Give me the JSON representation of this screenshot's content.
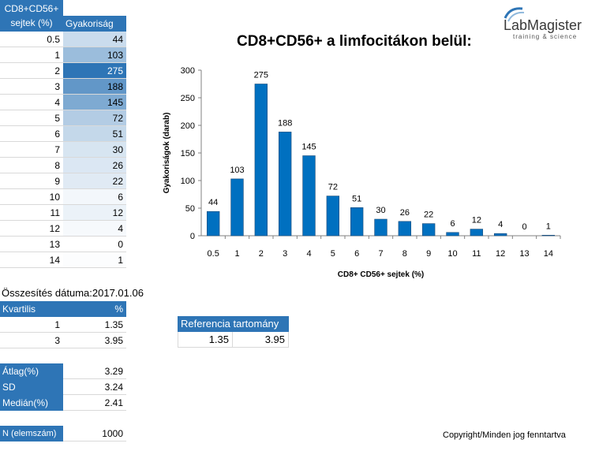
{
  "freq_table": {
    "header_bin": "CD8+CD56+ sejtek (%)",
    "header_count": "Gyakoriság",
    "rows": [
      {
        "bin": "0.5",
        "count": "44"
      },
      {
        "bin": "1",
        "count": "103"
      },
      {
        "bin": "2",
        "count": "275"
      },
      {
        "bin": "3",
        "count": "188"
      },
      {
        "bin": "4",
        "count": "145"
      },
      {
        "bin": "5",
        "count": "72"
      },
      {
        "bin": "6",
        "count": "51"
      },
      {
        "bin": "7",
        "count": "30"
      },
      {
        "bin": "8",
        "count": "26"
      },
      {
        "bin": "9",
        "count": "22"
      },
      {
        "bin": "10",
        "count": "6"
      },
      {
        "bin": "11",
        "count": "12"
      },
      {
        "bin": "12",
        "count": "4"
      },
      {
        "bin": "13",
        "count": "0"
      },
      {
        "bin": "14",
        "count": "1"
      }
    ]
  },
  "summary": {
    "date_text": "Összesítés dátuma:2017.01.06",
    "quartile_header": "Kvartilis",
    "percent_header": "%",
    "quartiles": [
      {
        "q": "1",
        "value": "1.35"
      },
      {
        "q": "3",
        "value": "3.95"
      }
    ],
    "mean_label": "Átlag(%)",
    "mean_value": "3.29",
    "sd_label": "SD",
    "sd_value": "3.24",
    "median_label": "Medián(%)",
    "median_value": "2.41",
    "n_label": "N (elemszám)",
    "n_value": "1000"
  },
  "reference": {
    "label": "Referencia tartomány",
    "low": "1.35",
    "high": "3.95"
  },
  "logo": {
    "name": "LabMagister",
    "tagline": "training & science"
  },
  "copyright": "Copyright/Minden jog fenntartva",
  "colors": {
    "bar": "#0070c0",
    "header": "#2e75b6",
    "scale_dark": "#2e75b6",
    "scale_light": "#ffffff"
  },
  "chart_data": {
    "type": "bar",
    "title": "CD8+CD56+ a limfocitákon belül:",
    "xlabel": "CD8+ CD56+ sejtek (%)",
    "ylabel": "Gyakoriságok (darab)",
    "categories": [
      "0.5",
      "1",
      "2",
      "3",
      "4",
      "5",
      "6",
      "7",
      "8",
      "9",
      "10",
      "11",
      "12",
      "13",
      "14"
    ],
    "values": [
      44,
      103,
      275,
      188,
      145,
      72,
      51,
      30,
      26,
      22,
      6,
      12,
      4,
      0,
      1
    ],
    "ylim": [
      0,
      300
    ],
    "yticks": [
      0,
      50,
      100,
      150,
      200,
      250,
      300
    ],
    "grid": false,
    "legend": false,
    "data_labels": true
  }
}
